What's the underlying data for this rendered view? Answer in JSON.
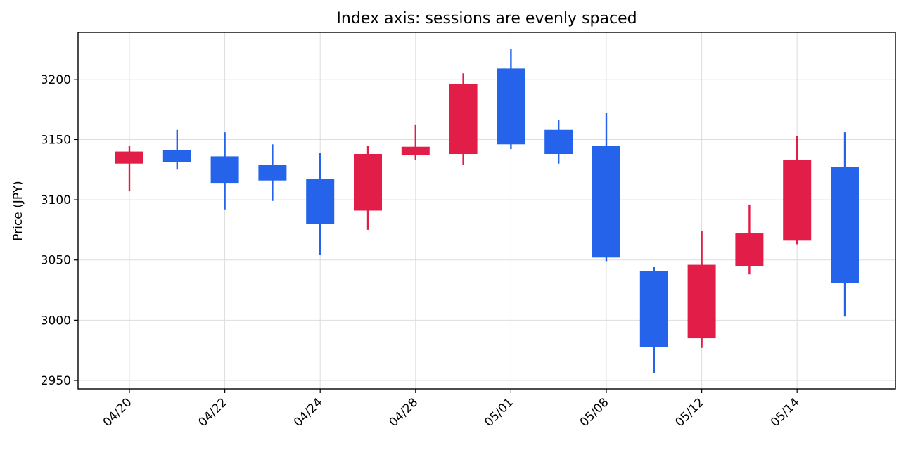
{
  "chart_data": {
    "type": "candlestick",
    "title": "Index axis: sessions are evenly spaced",
    "ylabel": "Price (JPY)",
    "xlabel": "",
    "ylim": [
      2943,
      3239
    ],
    "yticks": [
      2950,
      3000,
      3050,
      3100,
      3150,
      3200
    ],
    "xticks": [
      {
        "index": 0,
        "label": "04/20"
      },
      {
        "index": 2,
        "label": "04/22"
      },
      {
        "index": 4,
        "label": "04/24"
      },
      {
        "index": 6,
        "label": "04/28"
      },
      {
        "index": 8,
        "label": "05/01"
      },
      {
        "index": 10,
        "label": "05/08"
      },
      {
        "index": 12,
        "label": "05/12"
      },
      {
        "index": 14,
        "label": "05/14"
      }
    ],
    "grid": true,
    "colors": {
      "up": "#e11d48",
      "down": "#2563eb"
    },
    "candles": [
      {
        "open": 3130,
        "high": 3145,
        "low": 3107,
        "close": 3140
      },
      {
        "open": 3141,
        "high": 3158,
        "low": 3125,
        "close": 3131
      },
      {
        "open": 3136,
        "high": 3156,
        "low": 3092,
        "close": 3114
      },
      {
        "open": 3129,
        "high": 3146,
        "low": 3099,
        "close": 3116
      },
      {
        "open": 3117,
        "high": 3139,
        "low": 3054,
        "close": 3080
      },
      {
        "open": 3091,
        "high": 3145,
        "low": 3075,
        "close": 3138
      },
      {
        "open": 3137,
        "high": 3162,
        "low": 3133,
        "close": 3144
      },
      {
        "open": 3138,
        "high": 3205,
        "low": 3129,
        "close": 3196
      },
      {
        "open": 3209,
        "high": 3225,
        "low": 3142,
        "close": 3146
      },
      {
        "open": 3158,
        "high": 3166,
        "low": 3130,
        "close": 3138
      },
      {
        "open": 3145,
        "high": 3172,
        "low": 3049,
        "close": 3052
      },
      {
        "open": 3041,
        "high": 3044,
        "low": 2956,
        "close": 2978
      },
      {
        "open": 2985,
        "high": 3074,
        "low": 2977,
        "close": 3046
      },
      {
        "open": 3045,
        "high": 3096,
        "low": 3038,
        "close": 3072
      },
      {
        "open": 3066,
        "high": 3153,
        "low": 3063,
        "close": 3133
      },
      {
        "open": 3127,
        "high": 3156,
        "low": 3003,
        "close": 3031
      }
    ]
  }
}
